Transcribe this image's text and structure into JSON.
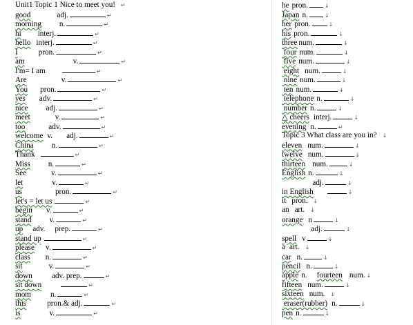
{
  "left_rows": [
    {
      "text": "Unit1 Topic 1 Nice to meet you!",
      "pos": "",
      "gap": 0,
      "blank": 0,
      "mark": "↵",
      "squig": false
    },
    {
      "text": "good",
      "pos": "adj.",
      "gap": 38,
      "blank": 52,
      "mark": "↵",
      "squig": true
    },
    {
      "text": "morning",
      "pos": "n.",
      "gap": 26,
      "blank": 52,
      "mark": "↵",
      "squig": true
    },
    {
      "text": "hi",
      "pos": "interj.",
      "gap": 24,
      "blank": 52,
      "mark": "↵",
      "squig": true
    },
    {
      "text": "hello",
      "pos": "interj.",
      "gap": 8,
      "blank": 52,
      "mark": "↵",
      "squig": true
    },
    {
      "text": "I",
      "pos": "pron.",
      "gap": 30,
      "blank": 58,
      "mark": "↵",
      "squig": true
    },
    {
      "text": "am",
      "pos": "v.",
      "gap": 70,
      "blank": 58,
      "mark": "↵",
      "squig": true
    },
    {
      "text": "I'm= I am",
      "pos": "",
      "gap": 24,
      "blank": 48,
      "mark": "↵",
      "squig": false
    },
    {
      "text": "Are",
      "pos": "v.",
      "gap": 50,
      "blank": 70,
      "mark": "↵",
      "squig": true
    },
    {
      "text": "You",
      "pos": "pron.",
      "gap": 18,
      "blank": 62,
      "mark": "↵",
      "squig": true
    },
    {
      "text": "yes",
      "pos": "adv.",
      "gap": 20,
      "blank": 56,
      "mark": "↵",
      "squig": true
    },
    {
      "text": "nice",
      "pos": "adj.",
      "gap": 26,
      "blank": 56,
      "mark": "↵",
      "squig": true
    },
    {
      "text": "meet",
      "pos": "v.",
      "gap": 36,
      "blank": 54,
      "mark": "↵",
      "squig": true
    },
    {
      "text": "too",
      "pos": "adv.",
      "gap": 34,
      "blank": 54,
      "mark": "↵",
      "squig": true
    },
    {
      "text": "welcome",
      "pos": "v.",
      "gap": 6,
      "blank": 0,
      "mark": "",
      "squig": true,
      "extra_pos": "adj.",
      "extra_gap": 20,
      "extra_blank": 42,
      "extra_mark": "↵"
    },
    {
      "text": "China",
      "pos": "n.",
      "gap": 26,
      "blank": 56,
      "mark": "↵",
      "squig": true
    },
    {
      "text": "Thank",
      "pos": "",
      "gap": 8,
      "blank": 48,
      "mark": "↵",
      "squig": false
    },
    {
      "text": "Miss",
      "pos": "n.",
      "gap": 26,
      "blank": 36,
      "mark": "↵",
      "squig": true
    },
    {
      "text": "See",
      "pos": "v.",
      "gap": 36,
      "blank": 56,
      "mark": "↵",
      "squig": false
    },
    {
      "text": "let",
      "pos": "v.",
      "gap": 42,
      "blank": 36,
      "mark": "↵",
      "squig": true
    },
    {
      "text": "us",
      "pos": "pron.",
      "gap": 48,
      "blank": 56,
      "mark": "↵",
      "squig": true
    },
    {
      "text": "let's = let us",
      "pos": "",
      "gap": 0,
      "blank": 42,
      "mark": "↵",
      "squig": true
    },
    {
      "text": "begin",
      "pos": "v.",
      "gap": 20,
      "blank": 36,
      "mark": "↵",
      "squig": true
    },
    {
      "text": "stand",
      "pos": "v.",
      "gap": 26,
      "blank": 36,
      "mark": "↵",
      "squig": true
    },
    {
      "text": "up",
      "pos": "adv.",
      "gap": 14,
      "blank": 0,
      "mark": "",
      "squig": true,
      "extra_pos": "prep.",
      "extra_gap": 14,
      "extra_blank": 36,
      "extra_mark": "↵"
    },
    {
      "text": "stand up",
      "pos": "",
      "gap": 0,
      "blank": 54,
      "mark": "↵",
      "squig": true
    },
    {
      "text": "please",
      "pos": "v.",
      "gap": 16,
      "blank": 56,
      "mark": "↵",
      "squig": true
    },
    {
      "text": "class",
      "pos": "n.",
      "gap": 22,
      "blank": 42,
      "mark": "↵",
      "squig": true
    },
    {
      "text": "sit",
      "pos": "v.",
      "gap": 38,
      "blank": 42,
      "mark": "↵",
      "squig": true
    },
    {
      "text": "down",
      "pos": "adv. prep.",
      "gap": 28,
      "blank": 30,
      "mark": "↵",
      "squig": true
    },
    {
      "text": "sit down",
      "pos": "",
      "gap": 28,
      "blank": 38,
      "mark": "↵",
      "squig": true
    },
    {
      "text": "mom",
      "pos": "n.",
      "gap": 28,
      "blank": 36,
      "mark": "↵",
      "squig": true
    },
    {
      "text": "this",
      "pos": "pron.& adj.",
      "gap": 30,
      "blank": 38,
      "mark": "↵",
      "squig": true
    },
    {
      "text": "is",
      "pos": "v.",
      "gap": 42,
      "blank": 52,
      "mark": "↵",
      "squig": true
    }
  ],
  "right_rows": [
    {
      "text": "he",
      "pos": "pron.",
      "gap": 4,
      "blank": 20,
      "mark": "↓",
      "squig": true
    },
    {
      "text": "Japan",
      "pos": "n.",
      "gap": 4,
      "blank": 20,
      "mark": "↓",
      "squig": true
    },
    {
      "text": "her",
      "pos": "pron.",
      "gap": 4,
      "blank": 22,
      "mark": "↓",
      "squig": true
    },
    {
      "text": "his",
      "pos": "pron.",
      "gap": 0,
      "blank": 38,
      "mark": "↓",
      "squig": true
    },
    {
      "text": "three",
      "pos": "num.",
      "gap": 2,
      "blank": 38,
      "mark": "↓",
      "squig": true
    },
    {
      "text": " four",
      "pos": "num.",
      "gap": 4,
      "blank": 38,
      "mark": "↓",
      "squig": true
    },
    {
      "text": " five",
      "pos": "num.",
      "gap": 4,
      "blank": 42,
      "mark": "↓",
      "squig": true
    },
    {
      "text": " eight",
      "pos": "num.",
      "gap": 8,
      "blank": 28,
      "mark": "↓",
      "squig": true
    },
    {
      "text": " nine",
      "pos": "num.",
      "gap": 4,
      "blank": 34,
      "mark": "↓",
      "squig": true
    },
    {
      "text": " ten",
      "pos": "num.",
      "gap": 4,
      "blank": 36,
      "mark": "↓",
      "squig": true
    },
    {
      "text": " telephone",
      "pos": "n.",
      "gap": 4,
      "blank": 36,
      "mark": "↓",
      "squig": true
    },
    {
      "text": " number",
      "pos": "n.",
      "gap": 4,
      "blank": 28,
      "mark": "↓",
      "squig": true
    },
    {
      "text": "△ cheers",
      "pos": "interj.",
      "gap": 6,
      "blank": 28,
      "mark": "↓",
      "squig": true
    },
    {
      "text": "evening",
      "pos": "n.",
      "gap": 6,
      "blank": 28,
      "mark": "↵",
      "squig": true
    },
    {
      "text": "Topic 3 What class are you in?",
      "pos": "",
      "gap": 0,
      "blank": 0,
      "mark": "↓",
      "squig": false
    },
    {
      "text": "eleven",
      "pos": "num.",
      "gap": 8,
      "blank": 42,
      "mark": "↓",
      "squig": true
    },
    {
      "text": "twelve",
      "pos": "num.",
      "gap": 8,
      "blank": 42,
      "mark": "↓",
      "squig": true
    },
    {
      "text": "thirteen",
      "pos": "num.",
      "gap": 10,
      "blank": 26,
      "mark": "↓",
      "squig": true
    },
    {
      "text": "English",
      "pos": "n.",
      "gap": 4,
      "blank": 32,
      "mark": "↓",
      "squig": true
    },
    {
      "text": "        ",
      "pos": "adj.",
      "gap": 22,
      "blank": 30,
      "mark": "↓",
      "squig": false
    },
    {
      "text": "in English",
      "pos": "",
      "gap": 20,
      "blank": 28,
      "mark": "↓",
      "squig": true
    },
    {
      "text": "it",
      "pos": "pron.",
      "gap": 8,
      "blank": 0,
      "mark": "↓",
      "squig": false
    },
    {
      "text": "an",
      "pos": "art.",
      "gap": 8,
      "blank": 0,
      "mark": "↓",
      "squig": false
    },
    {
      "text": "orange",
      "pos": "n",
      "gap": 8,
      "blank": 28,
      "mark": "↓",
      "squig": true
    },
    {
      "text": "        ",
      "pos": "adj.",
      "gap": 20,
      "blank": 30,
      "mark": "↓",
      "squig": false
    },
    {
      "text": "spell",
      "pos": "v",
      "gap": 8,
      "blank": 28,
      "mark": "↓",
      "squig": true
    },
    {
      "text": "a",
      "pos": "art.",
      "gap": 6,
      "blank": 0,
      "mark": "↓",
      "squig": false
    },
    {
      "text": "car",
      "pos": "n.",
      "gap": 8,
      "blank": 26,
      "mark": "↓",
      "squig": true
    },
    {
      "text": "pencil",
      "pos": "n.",
      "gap": 8,
      "blank": 28,
      "mark": "↓",
      "squig": true
    },
    {
      "text": "apple",
      "pos": "n.",
      "gap": 4,
      "blank": 0,
      "mark": "",
      "squig": true,
      "extra_text": "fourteen",
      "extra_pos": "num.",
      "extra_gap": 10,
      "extra_mark": "↓"
    },
    {
      "text": "fifteen",
      "pos": "num.",
      "gap": 8,
      "blank": 28,
      "mark": "↓",
      "squig": true
    },
    {
      "text": "sixteen",
      "pos": "num.",
      "gap": 8,
      "blank": 0,
      "mark": "↓",
      "squig": true
    },
    {
      "text": " eraser(rubber)",
      "pos": "n.",
      "gap": 6,
      "blank": 30,
      "mark": "↓",
      "squig": true
    },
    {
      "text": "pen",
      "pos": "n.",
      "gap": 4,
      "blank": 30,
      "mark": "↓",
      "squig": true
    }
  ]
}
